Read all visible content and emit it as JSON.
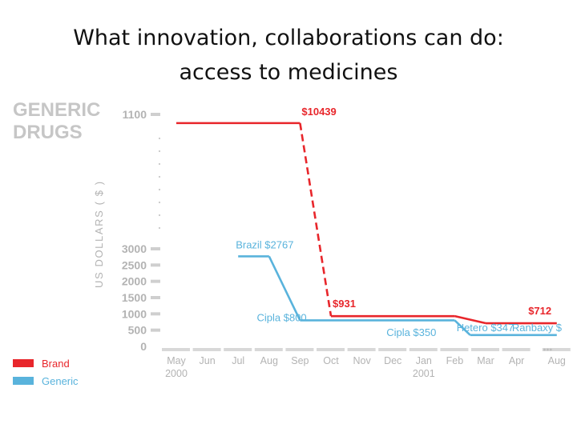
{
  "slide": {
    "title_line1": "What innovation, collaborations can do:",
    "title_line2": "access to medicines"
  },
  "colors": {
    "brand": "#e8262b",
    "generic": "#59b3dc",
    "axis": "#d8d8d8",
    "text_grey": "#b3b3b3"
  },
  "chart_data": {
    "type": "line",
    "heading": [
      "GENERIC",
      "DRUGS"
    ],
    "ylabel": "US DOLLARS ( $ )",
    "y_ticks_lower": [
      "3000",
      "2500",
      "2000",
      "1500",
      "1000",
      "500",
      "0"
    ],
    "y_tick_upper": "1100",
    "x_ticks": [
      {
        "label": "May",
        "sub": "2000"
      },
      {
        "label": "Jun"
      },
      {
        "label": "Jul"
      },
      {
        "label": "Aug"
      },
      {
        "label": "Sep"
      },
      {
        "label": "Oct"
      },
      {
        "label": "Nov"
      },
      {
        "label": "Dec"
      },
      {
        "label": "Jan",
        "sub": "2001"
      },
      {
        "label": "Feb"
      },
      {
        "label": "Mar"
      },
      {
        "label": "Apr"
      },
      {
        "label": "Aug"
      }
    ],
    "legend": [
      {
        "name": "Brand",
        "color": "#e8262b"
      },
      {
        "name": "Generic",
        "color": "#59b3dc"
      }
    ],
    "series": [
      {
        "name": "Brand",
        "points": [
          [
            0,
            10439
          ],
          [
            4,
            10439
          ],
          [
            5,
            931
          ],
          [
            9,
            931
          ],
          [
            10,
            712
          ],
          [
            12.3,
            712
          ]
        ],
        "dashed_segments": [
          1
        ]
      },
      {
        "name": "Generic",
        "points": [
          [
            2,
            2767
          ],
          [
            3,
            2767
          ],
          [
            4,
            800
          ],
          [
            9,
            800
          ],
          [
            9.5,
            350
          ],
          [
            12.3,
            350
          ]
        ],
        "dashed_segments": []
      }
    ],
    "annotations": [
      {
        "text": "$10439",
        "series": "Brand",
        "at": [
          4,
          10439
        ]
      },
      {
        "text": "$931",
        "series": "Brand",
        "at": [
          5,
          931
        ]
      },
      {
        "text": "$712",
        "series": "Brand",
        "at": [
          12,
          712
        ]
      },
      {
        "text": "Brazil $2767",
        "series": "Generic",
        "at": [
          2,
          2767
        ]
      },
      {
        "text": "Cipla $800",
        "series": "Generic",
        "at": [
          2.5,
          800
        ]
      },
      {
        "text": "Cipla $350",
        "series": "Generic",
        "at": [
          7,
          350
        ]
      },
      {
        "text": "Hetero $347",
        "series": "Generic",
        "at": [
          9.5,
          350
        ]
      },
      {
        "text": "Ranbaxy $",
        "series": "Generic",
        "at": [
          11.5,
          350
        ]
      }
    ]
  }
}
